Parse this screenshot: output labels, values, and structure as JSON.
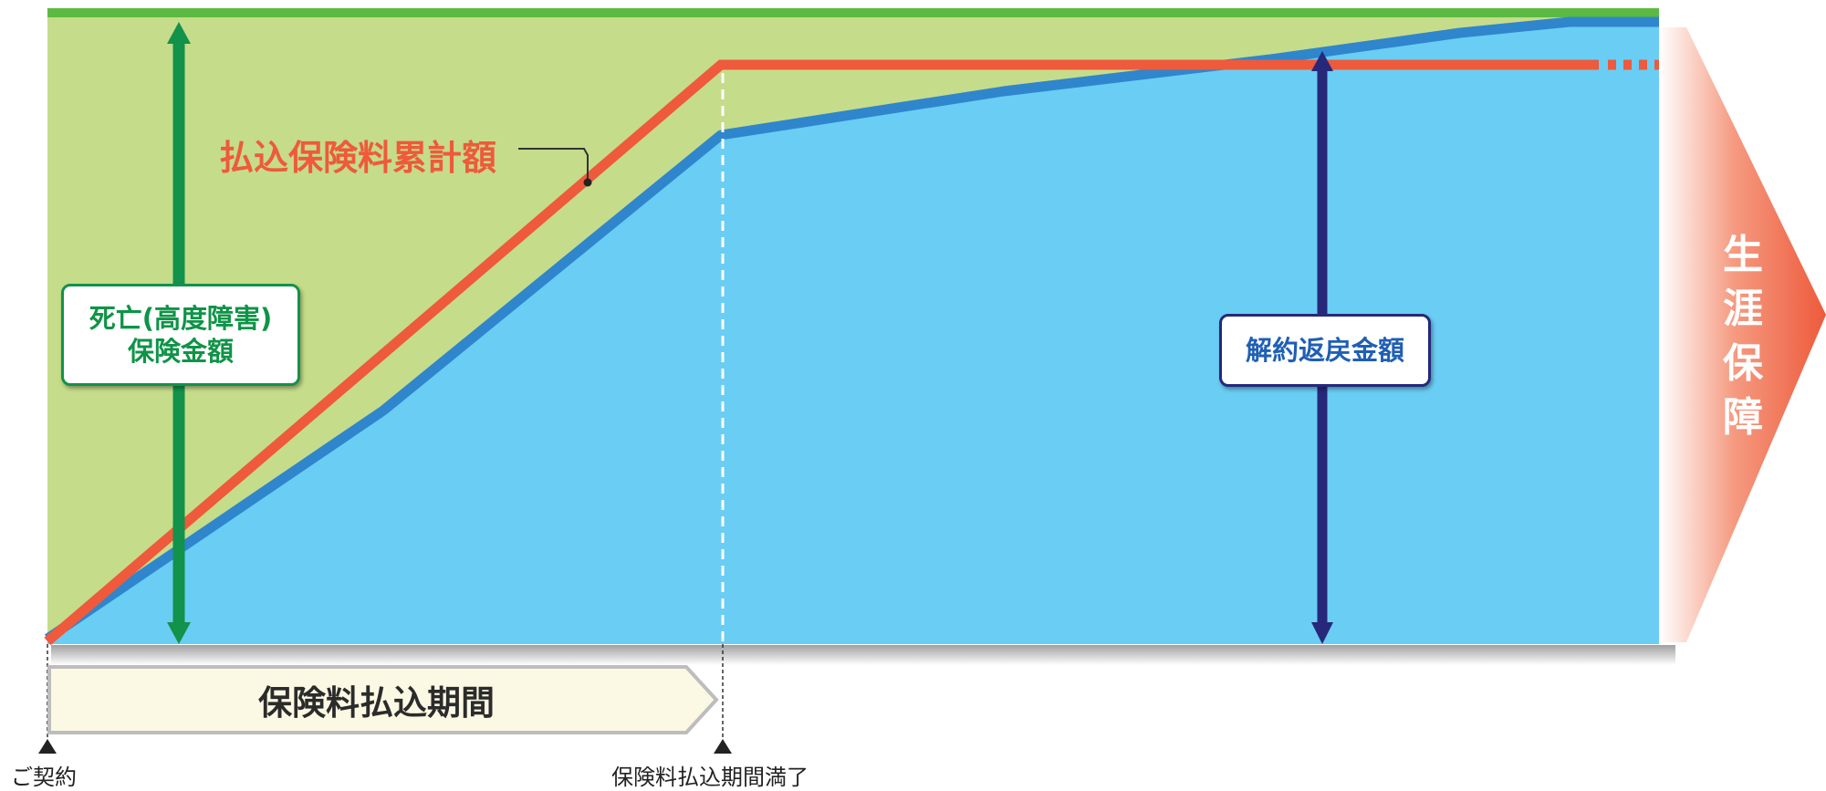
{
  "labels": {
    "cumulative_premium": "払込保険料累計額",
    "death_benefit_line1": "死亡(高度障害)",
    "death_benefit_line2": "保険金額",
    "surrender_value": "解約返戻金額",
    "payment_period": "保険料払込期間",
    "contract_start": "ご契約",
    "payment_end": "保険料払込期間満了",
    "lifetime_coverage": [
      "生",
      "涯",
      "保",
      "障"
    ]
  },
  "colors": {
    "death_area": "#c5dc8a",
    "death_line": "#5cb941",
    "surrender_area": "#6acdf4",
    "surrender_line": "#2f86cc",
    "premium_line": "#ee5a3b",
    "death_arrow": "#12924a",
    "surrender_arrow": "#27287a",
    "lifetime_arrow": "#ee5a3b",
    "period_bar": "#fbf9e4"
  }
}
